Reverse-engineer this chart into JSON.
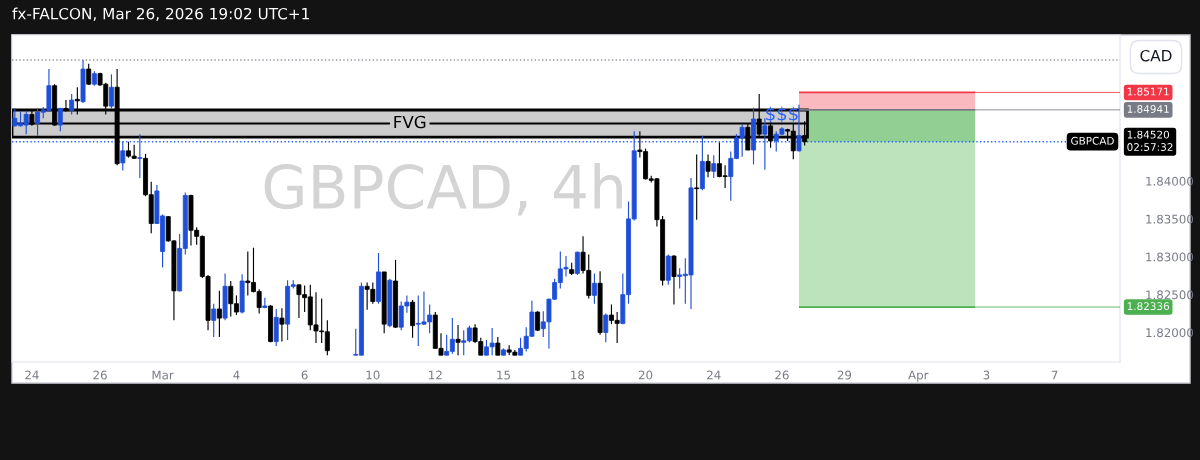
{
  "chart_data": {
    "type": "candlestick",
    "title": "fx-FALCON, Mar 26, 2026 19:02 UTC+1",
    "subtitle": "GBPCAD, 4h",
    "categories": [
      null,
      null,
      null,
      "24",
      null,
      null,
      null,
      null,
      null,
      null,
      null,
      null,
      null,
      null,
      null,
      "26",
      null,
      null,
      null,
      null,
      null,
      null,
      null,
      null,
      null,
      null,
      "Mar",
      null,
      null,
      null,
      null,
      null,
      null,
      null,
      null,
      null,
      null,
      null,
      null,
      "4",
      null,
      null,
      null,
      null,
      null,
      null,
      null,
      null,
      null,
      null,
      null,
      "6",
      null,
      null,
      null,
      null,
      null,
      null,
      null,
      null,
      null,
      null,
      null,
      "10",
      null,
      null,
      null,
      null,
      null,
      null,
      null,
      null,
      null,
      null,
      "12",
      null,
      null,
      null,
      null,
      null,
      null,
      null,
      null,
      null,
      null,
      null,
      "15",
      null,
      null,
      null,
      null,
      null,
      null,
      null,
      null,
      null,
      null,
      null,
      null,
      "18",
      null,
      null,
      null,
      null,
      null,
      null,
      null,
      null,
      null,
      null,
      null,
      "20",
      null,
      null,
      null,
      null,
      null,
      null,
      null,
      null,
      null,
      null,
      null,
      "24",
      null,
      null,
      null,
      null,
      null,
      null,
      null,
      null,
      null,
      null,
      null,
      "26",
      null,
      null,
      null,
      null,
      null,
      null,
      null,
      null,
      null,
      null,
      "29",
      null,
      null,
      null,
      null,
      null,
      null,
      null,
      null,
      null,
      null,
      null,
      null,
      "Apr",
      null,
      null,
      null,
      null,
      null,
      null,
      null,
      null,
      null,
      null,
      null,
      "3",
      null,
      null,
      null,
      null,
      null,
      null,
      null,
      null,
      null,
      null,
      null,
      "7",
      null,
      null,
      null,
      null,
      null,
      null,
      null,
      null,
      null,
      null,
      null
    ],
    "ohlc": [
      [
        1.8473,
        1.8496,
        1.8472,
        1.8483
      ],
      [
        1.8473,
        1.8492,
        1.8472,
        1.8476
      ],
      [
        1.8474,
        1.8493,
        1.8462,
        1.8488
      ],
      [
        1.8488,
        1.8493,
        1.8473,
        1.8475
      ],
      [
        1.8476,
        1.8496,
        1.846,
        1.8491
      ],
      [
        1.8491,
        1.8498,
        1.8483,
        1.8494
      ],
      [
        1.8493,
        1.8548,
        1.8492,
        1.8526
      ],
      [
        1.8526,
        1.8528,
        1.8473,
        1.8474
      ],
      [
        1.8474,
        1.8497,
        1.8466,
        1.8496
      ],
      [
        1.8496,
        1.8507,
        1.8492,
        1.8493
      ],
      [
        1.8493,
        1.8515,
        1.8488,
        1.8507
      ],
      [
        1.8508,
        1.8524,
        1.8488,
        1.8506
      ],
      [
        1.8505,
        1.856,
        1.8503,
        1.8548
      ],
      [
        1.8548,
        1.8555,
        1.8527,
        1.8528
      ],
      [
        1.8528,
        1.8545,
        1.8526,
        1.8542
      ],
      [
        1.8542,
        1.8543,
        1.8526,
        1.8527
      ],
      [
        1.8528,
        1.853,
        1.8488,
        1.8499
      ],
      [
        1.8499,
        1.8541,
        1.8496,
        1.8524
      ],
      [
        1.8524,
        1.8548,
        1.8421,
        1.8423
      ],
      [
        1.8424,
        1.8452,
        1.8414,
        1.844
      ],
      [
        1.844,
        1.8452,
        1.8431,
        1.8433
      ],
      [
        1.8433,
        1.8448,
        1.843,
        1.843
      ],
      [
        1.843,
        1.8462,
        1.8404,
        1.8431
      ],
      [
        1.843,
        1.8436,
        1.838,
        1.8382
      ],
      [
        1.8382,
        1.8399,
        1.8331,
        1.8344
      ],
      [
        1.8344,
        1.8395,
        1.8344,
        1.8387
      ],
      [
        1.8307,
        1.8356,
        1.8286,
        1.8354
      ],
      [
        1.8353,
        1.8354,
        1.832,
        1.8321
      ],
      [
        1.8321,
        1.8322,
        1.8216,
        1.8255
      ],
      [
        1.8255,
        1.833,
        1.8254,
        1.8311
      ],
      [
        1.8311,
        1.8385,
        1.8303,
        1.8381
      ],
      [
        1.8381,
        1.8382,
        1.8315,
        1.8335
      ],
      [
        1.8335,
        1.8339,
        1.8316,
        1.8327
      ],
      [
        1.8327,
        1.8328,
        1.8272,
        1.8274
      ],
      [
        1.8274,
        1.8276,
        1.8203,
        1.8216
      ],
      [
        1.8216,
        1.8238,
        1.8194,
        1.8231
      ],
      [
        1.8231,
        1.8255,
        1.8194,
        1.8219
      ],
      [
        1.8219,
        1.8278,
        1.8216,
        1.8261
      ],
      [
        1.8261,
        1.8268,
        1.8221,
        1.8238
      ],
      [
        1.8238,
        1.8249,
        1.8223,
        1.8227
      ],
      [
        1.8227,
        1.8277,
        1.8225,
        1.8268
      ],
      [
        1.8268,
        1.8307,
        1.8249,
        1.8266
      ],
      [
        1.8266,
        1.8312,
        1.8253,
        1.8254
      ],
      [
        1.8254,
        1.8257,
        1.8225,
        1.8233
      ],
      [
        1.8233,
        1.8246,
        1.8232,
        1.8235
      ],
      [
        1.8235,
        1.8236,
        1.8187,
        1.8188
      ],
      [
        1.8188,
        1.8231,
        1.8182,
        1.822
      ],
      [
        1.8219,
        1.8232,
        1.8188,
        1.8211
      ],
      [
        1.8211,
        1.8269,
        1.819,
        1.8261
      ],
      [
        1.8261,
        1.8269,
        1.8258,
        1.8263
      ],
      [
        1.8263,
        1.8263,
        1.8219,
        1.825
      ],
      [
        1.825,
        1.8262,
        1.8227,
        1.8246
      ],
      [
        1.8247,
        1.8263,
        1.8203,
        1.821
      ],
      [
        1.821,
        1.8253,
        1.8186,
        1.8202
      ],
      [
        1.8202,
        1.8245,
        1.8186,
        1.8201
      ],
      [
        1.8201,
        1.8216,
        1.817,
        1.8176
      ],
      null,
      null,
      null,
      null,
      [
        1.817,
        1.8205,
        1.817,
        1.8171
      ],
      [
        1.817,
        1.8266,
        1.817,
        1.8261
      ],
      [
        1.8261,
        1.8266,
        1.823,
        1.8257
      ],
      [
        1.8257,
        1.8266,
        1.8238,
        1.8241
      ],
      [
        1.8241,
        1.8305,
        1.8238,
        1.828
      ],
      [
        1.828,
        1.828,
        1.8199,
        1.8211
      ],
      [
        1.8209,
        1.8271,
        1.8207,
        1.8269
      ],
      [
        1.8268,
        1.8296,
        1.8206,
        1.8207
      ],
      [
        1.8207,
        1.8241,
        1.8203,
        1.8235
      ],
      [
        1.8235,
        1.8249,
        1.8226,
        1.824
      ],
      [
        1.824,
        1.8243,
        1.8193,
        1.8209
      ],
      [
        1.8211,
        1.8249,
        1.8182,
        1.8212
      ],
      [
        1.8211,
        1.8254,
        1.821,
        1.8214
      ],
      [
        1.8214,
        1.8237,
        1.8199,
        1.8223
      ],
      [
        1.8223,
        1.8227,
        1.8179,
        1.8179
      ],
      [
        1.8179,
        1.8199,
        1.817,
        1.817
      ],
      [
        1.817,
        1.8197,
        1.817,
        1.8175
      ],
      [
        1.8175,
        1.8219,
        1.8172,
        1.8191
      ],
      [
        1.8191,
        1.821,
        1.817,
        1.8187
      ],
      [
        1.8187,
        1.8203,
        1.817,
        1.8189
      ],
      [
        1.8189,
        1.8209,
        1.8187,
        1.8206
      ],
      [
        1.8206,
        1.8211,
        1.8186,
        1.8188
      ],
      [
        1.8188,
        1.8193,
        1.817,
        1.817
      ],
      [
        1.817,
        1.819,
        1.817,
        1.8181
      ],
      [
        1.8181,
        1.8206,
        1.817,
        1.8186
      ],
      [
        1.8186,
        1.8194,
        1.817,
        1.817
      ],
      [
        1.817,
        1.8179,
        1.817,
        1.8177
      ],
      [
        1.8177,
        1.8183,
        1.817,
        1.8174
      ],
      [
        1.8174,
        1.8177,
        1.817,
        1.817
      ],
      [
        1.817,
        1.8193,
        1.817,
        1.8179
      ],
      [
        1.8179,
        1.8207,
        1.8175,
        1.8195
      ],
      [
        1.8195,
        1.8242,
        1.8194,
        1.8227
      ],
      [
        1.8227,
        1.8228,
        1.8202,
        1.8203
      ],
      [
        1.8205,
        1.8228,
        1.8194,
        1.8214
      ],
      [
        1.8214,
        1.8245,
        1.8179,
        1.8244
      ],
      [
        1.8244,
        1.8271,
        1.8243,
        1.8266
      ],
      [
        1.8266,
        1.8307,
        1.8258,
        1.8284
      ],
      [
        1.8284,
        1.8301,
        1.8274,
        1.8286
      ],
      [
        1.8283,
        1.8292,
        1.8276,
        1.8278
      ],
      [
        1.8278,
        1.8307,
        1.8276,
        1.8306
      ],
      [
        1.8306,
        1.8327,
        1.8278,
        1.8282
      ],
      [
        1.8282,
        1.8303,
        1.8245,
        1.8249
      ],
      [
        1.8249,
        1.8278,
        1.8238,
        1.8265
      ],
      [
        1.8265,
        1.8281,
        1.8197,
        1.82
      ],
      [
        1.82,
        1.8225,
        1.8187,
        1.8223
      ],
      [
        1.8223,
        1.8237,
        1.8211,
        1.8216
      ],
      [
        1.8216,
        1.8227,
        1.8186,
        1.8212
      ],
      [
        1.8212,
        1.8278,
        1.8211,
        1.825
      ],
      [
        1.825,
        1.8373,
        1.8238,
        1.835
      ],
      [
        1.835,
        1.8466,
        1.8348,
        1.844
      ],
      [
        1.8441,
        1.8466,
        1.8431,
        1.8439
      ],
      [
        1.8439,
        1.8443,
        1.8402,
        1.8403
      ],
      [
        1.8403,
        1.8407,
        1.8398,
        1.8401
      ],
      [
        1.8403,
        1.8404,
        1.834,
        1.8349
      ],
      [
        1.8349,
        1.8354,
        1.8262,
        1.8269
      ],
      [
        1.8269,
        1.8303,
        1.8263,
        1.8301
      ],
      [
        1.8301,
        1.8302,
        1.8237,
        1.8274
      ],
      [
        1.8274,
        1.8285,
        1.8258,
        1.8276
      ],
      [
        1.8275,
        1.8298,
        1.8238,
        1.8277
      ],
      [
        1.8276,
        1.8404,
        1.8231,
        1.8391
      ],
      [
        1.8391,
        1.8435,
        1.8349,
        1.839
      ],
      [
        1.839,
        1.846,
        1.8388,
        1.8426
      ],
      [
        1.8426,
        1.8435,
        1.8405,
        1.8413
      ],
      [
        1.8413,
        1.8434,
        1.8404,
        1.8423
      ],
      [
        1.8423,
        1.8451,
        1.8405,
        1.8406
      ],
      [
        1.8407,
        1.8421,
        1.8391,
        1.8406
      ],
      [
        1.8406,
        1.8439,
        1.8374,
        1.843
      ],
      [
        1.843,
        1.8462,
        1.8429,
        1.8457
      ],
      [
        1.8457,
        1.8475,
        1.8432,
        1.8471
      ],
      [
        1.8471,
        1.8476,
        1.8441,
        1.8441
      ],
      [
        1.8441,
        1.8497,
        1.8422,
        1.8482
      ],
      [
        1.8482,
        1.8515,
        1.8459,
        1.8462
      ],
      [
        1.8462,
        1.8483,
        1.8415,
        1.8473
      ],
      [
        1.8473,
        1.8479,
        1.8444,
        1.8453
      ],
      [
        1.8453,
        1.8466,
        1.8439,
        1.8462
      ],
      [
        1.8462,
        1.8471,
        1.8461,
        1.8469
      ],
      [
        1.8468,
        1.8469,
        1.8453,
        1.8466
      ],
      [
        1.8466,
        1.8476,
        1.8429,
        1.844
      ],
      [
        1.844,
        1.8501,
        1.8439,
        1.846
      ],
      [
        1.846,
        1.8479,
        1.8447,
        1.8452
      ],
      null,
      null,
      null,
      null,
      null,
      null,
      null,
      null,
      null,
      null,
      null,
      null,
      null,
      null,
      null,
      null,
      null,
      null,
      null,
      null,
      null,
      null,
      null,
      null,
      null,
      null,
      null,
      null,
      null,
      null,
      null,
      null,
      null,
      null,
      null,
      null,
      null,
      null,
      null,
      null,
      null,
      null,
      null,
      null,
      null,
      null,
      null,
      null,
      null,
      null,
      null,
      null,
      null,
      null,
      null
    ],
    "colors": [
      "#1f4fd8",
      "#1f4fd8",
      "#1f4fd8",
      "#000000",
      "#1f4fd8",
      "#1f4fd8",
      "#1f4fd8",
      "#000000",
      "#1f4fd8",
      "#000000",
      "#1f4fd8",
      "#000000",
      "#1f4fd8",
      "#000000",
      "#1f4fd8",
      "#000000",
      "#000000",
      "#1f4fd8",
      "#000000",
      "#1f4fd8",
      "#000000",
      "#000000",
      "#1f4fd8",
      "#000000",
      "#000000",
      "#1f4fd8",
      "#1f4fd8",
      "#000000",
      "#000000",
      "#1f4fd8",
      "#1f4fd8",
      "#000000",
      "#000000",
      "#000000",
      "#000000",
      "#1f4fd8",
      "#000000",
      "#1f4fd8",
      "#000000",
      "#000000",
      "#1f4fd8",
      "#000000",
      "#000000",
      "#000000",
      "#1f4fd8",
      "#000000",
      "#1f4fd8",
      "#000000",
      "#1f4fd8",
      "#1f4fd8",
      "#000000",
      "#000000",
      "#000000",
      "#000000",
      "#000000",
      "#000000",
      null,
      null,
      null,
      null,
      "#1f4fd8",
      "#1f4fd8",
      "#000000",
      "#000000",
      "#1f4fd8",
      "#000000",
      "#1f4fd8",
      "#000000",
      "#1f4fd8",
      "#1f4fd8",
      "#000000",
      "#1f4fd8",
      "#1f4fd8",
      "#1f4fd8",
      "#000000",
      "#000000",
      "#1f4fd8",
      "#1f4fd8",
      "#000000",
      "#1f4fd8",
      "#1f4fd8",
      "#000000",
      "#000000",
      "#1f4fd8",
      "#1f4fd8",
      "#000000",
      "#1f4fd8",
      "#000000",
      "#000000",
      "#1f4fd8",
      "#1f4fd8",
      "#1f4fd8",
      "#000000",
      "#1f4fd8",
      "#1f4fd8",
      "#1f4fd8",
      "#1f4fd8",
      "#1f4fd8",
      "#000000",
      "#1f4fd8",
      "#000000",
      "#000000",
      "#1f4fd8",
      "#000000",
      "#1f4fd8",
      "#000000",
      "#000000",
      "#1f4fd8",
      "#1f4fd8",
      "#1f4fd8",
      "#000000",
      "#000000",
      "#000000",
      "#000000",
      "#000000",
      "#1f4fd8",
      "#000000",
      "#1f4fd8",
      "#1f4fd8",
      "#1f4fd8",
      "#000000",
      "#1f4fd8",
      "#000000",
      "#1f4fd8",
      "#000000",
      "#000000",
      "#1f4fd8",
      "#1f4fd8",
      "#1f4fd8",
      "#000000",
      "#1f4fd8",
      "#000000",
      "#1f4fd8",
      "#000000",
      "#1f4fd8",
      "#1f4fd8",
      "#000000",
      "#000000",
      "#1f4fd8",
      "#000000",
      null,
      null,
      null,
      null,
      null,
      null,
      null,
      null,
      null,
      null,
      null,
      null,
      null,
      null,
      null,
      null,
      null,
      null,
      null,
      null,
      null,
      null,
      null,
      null,
      null,
      null,
      null,
      null,
      null,
      null,
      null,
      null,
      null,
      null,
      null,
      null,
      null,
      null,
      null,
      null,
      null,
      null,
      null,
      null,
      null,
      null,
      null,
      null,
      null,
      null,
      null,
      null,
      null,
      null,
      null
    ],
    "ylim": [
      1.8161,
      1.8593
    ],
    "yticks": [
      {
        "value": 1.82,
        "label": "1.82000"
      },
      {
        "value": 1.825,
        "label": "1.82500"
      },
      {
        "value": 1.83,
        "label": "1.83000"
      },
      {
        "value": 1.835,
        "label": "1.83500"
      },
      {
        "value": 1.84,
        "label": "1.84000"
      }
    ],
    "bands": [
      {
        "axis": "y",
        "from": 1.84582,
        "to": 1.84939,
        "label": "FVG",
        "color": "#cccccc"
      },
      {
        "axis": "y",
        "from": 1.84941,
        "to": 1.85171,
        "color": "#f9b9be"
      },
      {
        "axis": "y",
        "from": 1.82336,
        "to": 1.84941,
        "color": "#bde3bd"
      },
      {
        "axis": "y",
        "from": 1.8452,
        "to": 1.84941,
        "color": "#92cf92"
      }
    ],
    "ref_lines": [
      {
        "axis": "y",
        "value": 1.856,
        "color": "#9598a1",
        "line_style": "dotted"
      },
      {
        "axis": "y",
        "value": 1.8452,
        "label": "1.84520\n02:57:32",
        "color": "#2962ff",
        "line_style": "dotted"
      },
      {
        "axis": "y",
        "value": 1.85171,
        "label": "1.85171",
        "color": "#f23645",
        "line_style": "solid"
      },
      {
        "axis": "y",
        "value": 1.84941,
        "label": "1.84941",
        "color": "#787b86",
        "line_style": "solid"
      },
      {
        "axis": "y",
        "value": 1.82336,
        "label": "1.82336",
        "color": "#4caf50",
        "line_style": "solid"
      }
    ],
    "annotations": [
      "CAD",
      {
        "text": "$$$",
        "y": 1.8487
      },
      {
        "text": "GBPCAD",
        "y": 1.8452
      }
    ],
    "grid": false,
    "legend": false
  }
}
